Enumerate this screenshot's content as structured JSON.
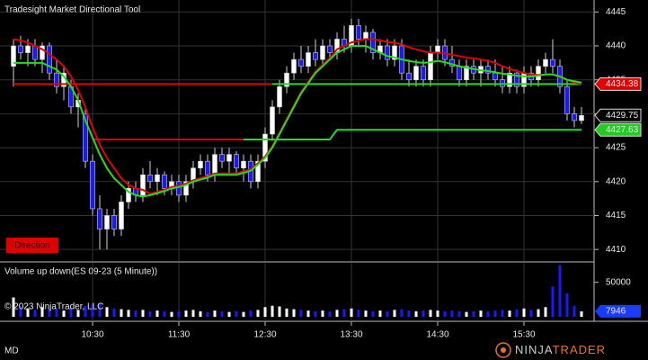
{
  "chart_data": [
    {
      "type": "candlestick",
      "title": "Tradesight Market Directional Tool",
      "annotation": "Direction",
      "annotation_color": "#e00000",
      "categories": [
        null,
        null,
        null,
        null,
        null,
        null,
        null,
        null,
        null,
        null,
        null,
        "10:30",
        null,
        null,
        null,
        null,
        null,
        null,
        null,
        null,
        null,
        null,
        null,
        "11:30",
        null,
        null,
        null,
        null,
        null,
        null,
        null,
        null,
        null,
        null,
        null,
        "12:30",
        null,
        null,
        null,
        null,
        null,
        null,
        null,
        null,
        null,
        null,
        null,
        "13:30",
        null,
        null,
        null,
        null,
        null,
        null,
        null,
        null,
        null,
        null,
        null,
        "14:30",
        null,
        null,
        null,
        null,
        null,
        null,
        null,
        null,
        null,
        null,
        null,
        "15:30",
        null,
        null,
        null,
        null,
        null,
        null,
        null,
        null
      ],
      "open": [
        4437,
        4440,
        4439,
        4440,
        4438,
        4440,
        4436,
        4434,
        4434,
        4431,
        4430,
        4423,
        4416,
        4413,
        4415,
        4413,
        4417,
        4419,
        4418,
        4421,
        4420,
        4421,
        4419,
        4420,
        4418,
        4420,
        4422,
        4423,
        4421,
        4424,
        4423,
        4424,
        4422,
        4423,
        4420,
        4423,
        4427,
        4431,
        4434,
        4436,
        4438,
        4437,
        4439,
        4438,
        4440,
        4439,
        4441,
        4440,
        4443,
        4441,
        4442,
        4439,
        4440,
        4438,
        4440,
        4436,
        4435,
        4437,
        4435,
        4439,
        4440,
        4438,
        4437,
        4435,
        4437,
        4436,
        4437,
        4436,
        4435,
        4434,
        4436,
        4434,
        4436,
        4435,
        4437,
        4438,
        4437,
        4434,
        4430,
        4429
      ],
      "high": [
        4441,
        4441.5,
        4441,
        4441,
        4440.5,
        4440.5,
        4438,
        4437,
        4435,
        4433,
        4431,
        4424,
        4418,
        4416,
        4416,
        4418,
        4420,
        4420,
        4422,
        4423,
        4422,
        4421.5,
        4421,
        4421,
        4421,
        4423,
        4424,
        4424,
        4425,
        4425,
        4425,
        4424.5,
        4424,
        4424,
        4424,
        4428,
        4432,
        4435,
        4437,
        4439,
        4440,
        4440,
        4441,
        4441,
        4441,
        4442,
        4443,
        4444,
        4444,
        4443,
        4442.5,
        4441,
        4441,
        4441,
        4441,
        4438,
        4438,
        4438,
        4440,
        4441,
        4441,
        4440,
        4438,
        4438,
        4438,
        4438,
        4438,
        4438,
        4437,
        4437,
        4436.5,
        4437,
        4437,
        4438,
        4439,
        4441,
        4438,
        4435,
        4431,
        4431
      ],
      "low": [
        4434,
        4438,
        4437,
        4437,
        4436,
        4435,
        4433,
        4432,
        4430,
        4428,
        4422,
        4415,
        4410,
        4410,
        4412,
        4412,
        4416,
        4417,
        4417,
        4419,
        4418,
        4418,
        4418,
        4417,
        4417,
        4419,
        4421,
        4420,
        4420,
        4422,
        4421,
        4421,
        4420,
        4419,
        4419,
        4422,
        4426,
        4430,
        4433,
        4435,
        4436,
        4436,
        4437,
        4437,
        4438,
        4438,
        4439,
        4439,
        4440,
        4439,
        4438,
        4438,
        4437,
        4437,
        4435,
        4434,
        4434,
        4434,
        4434,
        4438,
        4437,
        4436,
        4434,
        4434,
        4435,
        4434,
        4435,
        4434,
        4433,
        4433,
        4433,
        4433,
        4434,
        4434,
        4436,
        4436,
        4433,
        4429,
        4428,
        4428.5
      ],
      "close": [
        4440,
        4439,
        4440,
        4438,
        4440,
        4436,
        4434,
        4436,
        4431,
        4432,
        4423,
        4416,
        4413,
        4415,
        4413,
        4417,
        4419,
        4418,
        4421,
        4420,
        4421,
        4419,
        4420,
        4418,
        4420,
        4422,
        4423,
        4421,
        4424,
        4423,
        4424,
        4422,
        4423,
        4420,
        4423,
        4427,
        4431,
        4434,
        4436,
        4438,
        4437,
        4439,
        4438,
        4440,
        4439,
        4441,
        4440,
        4443,
        4441,
        4442,
        4439,
        4440,
        4438,
        4440,
        4436,
        4435,
        4437,
        4435,
        4439,
        4440,
        4438,
        4437,
        4435,
        4437,
        4436,
        4437,
        4436,
        4435,
        4434,
        4436,
        4434,
        4436,
        4435,
        4437,
        4438,
        4437,
        4434,
        4430,
        4429,
        4429.75
      ],
      "up_color": "#ffffff",
      "down_color": "#1a1aff",
      "series": [
        {
          "color": "#e00000",
          "values": [
            4434.38,
            4434.38,
            4434.38,
            4434.38,
            4434.38,
            4434.38,
            4434.38,
            4434.38,
            4434.38,
            4434.38,
            4434.38,
            4434.38,
            4434.38,
            4434.38,
            4434.38,
            4434.38,
            4434.38,
            4434.38,
            4434.38,
            4434.38,
            4434.38,
            4434.38,
            4434.38,
            4434.38,
            4434.38,
            4434.38,
            4434.38,
            4434.38,
            4434.38,
            4434.38,
            4434.38,
            4434.38,
            4434.38,
            4434.38,
            4434.38,
            4434.38,
            4434.38,
            null,
            null,
            null,
            null,
            null,
            null,
            null,
            null,
            null,
            null,
            null,
            null,
            null,
            null,
            null,
            null,
            null,
            null,
            null,
            null,
            null,
            null,
            null,
            null,
            null,
            null,
            null,
            null,
            null,
            null,
            null,
            null,
            null,
            null,
            null,
            null,
            null,
            null,
            null,
            null,
            null,
            null,
            null
          ]
        },
        {
          "color": "#22dd22",
          "values": [
            null,
            null,
            null,
            null,
            null,
            null,
            null,
            null,
            null,
            null,
            null,
            null,
            null,
            null,
            null,
            null,
            null,
            null,
            null,
            null,
            null,
            null,
            null,
            null,
            null,
            null,
            null,
            null,
            null,
            null,
            null,
            null,
            null,
            null,
            null,
            null,
            4434.38,
            4434.38,
            4434.38,
            4434.38,
            4434.38,
            4434.38,
            4434.38,
            4434.38,
            4434.38,
            4434.38,
            4434.38,
            4434.38,
            4434.38,
            4434.38,
            4434.38,
            4434.38,
            4434.38,
            4434.38,
            4434.38,
            4434.38,
            4434.38,
            4434.38,
            4434.38,
            4434.38,
            4434.38,
            4434.38,
            4434.38,
            4434.38,
            4434.38,
            4434.38,
            4434.38,
            4434.38,
            4434.38,
            4434.38,
            4434.38,
            4434.38,
            4434.38,
            4434.38,
            4434.38,
            4434.38,
            4434.38,
            4434.38,
            4434.38,
            4434.38
          ]
        },
        {
          "color": "#e00000",
          "values": [
            null,
            null,
            null,
            null,
            null,
            null,
            null,
            null,
            null,
            null,
            null,
            4426.2,
            4426.2,
            4426.2,
            4426.2,
            4426.2,
            4426.2,
            4426.2,
            4426.2,
            4426.2,
            4426.2,
            4426.2,
            4426.2,
            4426.2,
            4426.2,
            4426.2,
            4426.2,
            4426.2,
            4426.2,
            4426.2,
            4426.2,
            4426.2,
            4426.2,
            null,
            null,
            null,
            null,
            null,
            null,
            null,
            null,
            null,
            null,
            null,
            null,
            null,
            null,
            null,
            null,
            null,
            null,
            null,
            null,
            null,
            null,
            null,
            null,
            null,
            null,
            null,
            null,
            null,
            null,
            null,
            null,
            null,
            null,
            null,
            null,
            null,
            null,
            null,
            null,
            null,
            null,
            null,
            null,
            null,
            null,
            null
          ]
        },
        {
          "color": "#22dd22",
          "values": [
            null,
            null,
            null,
            null,
            null,
            null,
            null,
            null,
            null,
            null,
            null,
            null,
            null,
            null,
            null,
            null,
            null,
            null,
            null,
            null,
            null,
            null,
            null,
            null,
            null,
            null,
            null,
            null,
            null,
            null,
            null,
            null,
            4426.2,
            4426.2,
            4426.2,
            4426.2,
            4426.2,
            4426.2,
            4426.2,
            4426.2,
            4426.2,
            4426.2,
            4426.2,
            4426.2,
            4426.2,
            4427.63,
            4427.63,
            4427.63,
            4427.63,
            4427.63,
            4427.63,
            4427.63,
            4427.63,
            4427.63,
            4427.63,
            4427.63,
            4427.63,
            4427.63,
            4427.63,
            4427.63,
            4427.63,
            4427.63,
            4427.63,
            4427.63,
            4427.63,
            4427.63,
            4427.63,
            4427.63,
            4427.63,
            4427.63,
            4427.63,
            4427.63,
            4427.63,
            4427.63,
            4427.63,
            4427.63,
            4427.63,
            4427.63,
            4427.63,
            4427.63
          ]
        },
        {
          "color": "#e00000",
          "values": [
            4441,
            4440.8,
            4440.5,
            4440,
            4439.5,
            4438.8,
            4438,
            4437,
            4435.5,
            4433.5,
            4431,
            4428,
            4425.5,
            4423.5,
            4422,
            4420.5,
            4419.5,
            4419,
            4418.8,
            4418.2,
            4418.5,
            4418.8,
            4419.2,
            4419.4,
            4419.7,
            4420.2,
            4420.5,
            4420.8,
            4421.2,
            4421.2,
            4421.2,
            4421.2,
            4421.5,
            4421.8,
            4422.7,
            4423.7,
            4425.2,
            4427.2,
            4429.2,
            4431.2,
            4433.2,
            4434.7,
            4436.2,
            4437.2,
            4438.2,
            4439.5,
            4440,
            4440.5,
            4440.8,
            4441,
            4441,
            4440.8,
            4440.6,
            4440.5,
            4440.2,
            4439.8,
            4439.5,
            4439.2,
            4439,
            4439,
            4438.9,
            4438.7,
            4438.5,
            4438.3,
            4438.2,
            4438,
            4437.8,
            4437.5,
            4437,
            4436.6,
            4436.3,
            4436,
            4435.8,
            4435.7,
            4435.8,
            4435.8,
            4435.4,
            4435,
            4434.6,
            4434.4
          ]
        },
        {
          "color": "#22dd22",
          "values": [
            4437.5,
            4437.5,
            4437.5,
            4437.5,
            4437.5,
            4437,
            4436.5,
            4435.5,
            4434,
            4432,
            4429,
            4426.5,
            4424,
            4422,
            4420.5,
            4419.5,
            4418.5,
            4418,
            4417.8,
            4418,
            4418.3,
            4418.6,
            4419,
            4419.2,
            4419.5,
            4420,
            4420.3,
            4420.6,
            4421,
            4421,
            4421,
            4421,
            4421.3,
            4421.6,
            4422.5,
            4423.5,
            4425,
            4427,
            4429,
            4431,
            4433,
            4434.5,
            4436,
            4437,
            4438,
            4439,
            4439.5,
            4440,
            4440,
            4440,
            4439.5,
            4439,
            4438.5,
            4438.3,
            4438,
            4437.8,
            4437.6,
            4437.5,
            4437.6,
            4437.8,
            4437.6,
            4437.3,
            4437,
            4436.8,
            4436.6,
            4436.4,
            4436.3,
            4436.1,
            4435.9,
            4435.8,
            4435.6,
            4435.5,
            4435.5,
            4435.6,
            4435.8,
            4435.8,
            4435.5,
            4435,
            4434.8,
            4434.6
          ]
        }
      ],
      "price_tags": [
        {
          "value": 4434.38,
          "color": "#e00000"
        },
        {
          "value": 4429.75,
          "color": "#000000"
        },
        {
          "value": 4427.63,
          "color": "#22cc22"
        }
      ],
      "ylim": [
        4408.3,
        4446.5
      ],
      "yticks": [
        4410,
        4415,
        4420,
        4425,
        4430,
        4435,
        4440,
        4445
      ],
      "grid": true
    },
    {
      "type": "bar",
      "title": "Volume up down(ES 09-23 (5 Minute))",
      "values": [
        28000,
        15000,
        12000,
        10000,
        14000,
        12000,
        11000,
        9000,
        13000,
        10000,
        16000,
        18000,
        20000,
        14000,
        12000,
        11000,
        10000,
        9000,
        10000,
        8000,
        9000,
        8000,
        7000,
        8000,
        9000,
        10000,
        8000,
        7000,
        9000,
        8000,
        7000,
        8000,
        7000,
        9000,
        10000,
        14000,
        16000,
        15000,
        12000,
        11000,
        10000,
        9000,
        8000,
        9000,
        8000,
        10000,
        11000,
        12000,
        10000,
        9000,
        8000,
        9000,
        8000,
        10000,
        11000,
        9000,
        8000,
        9000,
        10000,
        9000,
        8000,
        9000,
        8000,
        7000,
        8000,
        9000,
        8000,
        9000,
        10000,
        9000,
        11000,
        12000,
        10000,
        11000,
        14000,
        44000,
        75000,
        34000,
        16000,
        7946
      ],
      "value_tag": {
        "value": 7946,
        "color": "#1a3cff"
      },
      "ylim": [
        0,
        77000
      ],
      "yticks": [
        50000
      ]
    }
  ],
  "copyright": "© 2023 NinjaTrader, LLC",
  "footer": "MD",
  "logo": [
    "NINJA",
    "TRADER"
  ]
}
